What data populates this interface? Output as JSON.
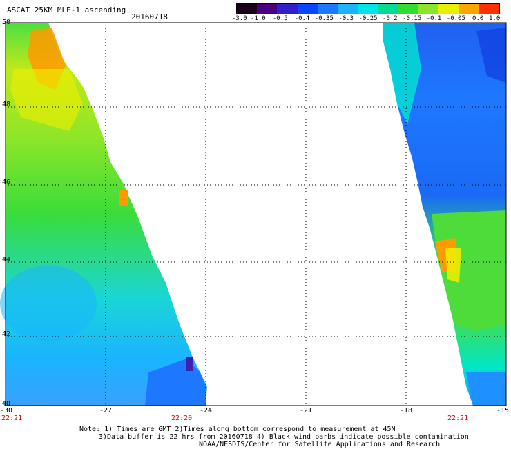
{
  "header": {
    "title": "ASCAT 25KM MLE-1 ascending",
    "date": "20160718"
  },
  "colorbar": {
    "labels": [
      "-3.0",
      "-1.0",
      "-0.5",
      "-0.4",
      "-0.35",
      "-0.3",
      "-0.25",
      "-0.2",
      "-0.15",
      "-0.1",
      "-0.05",
      "0.0",
      "1.0"
    ],
    "colors": [
      "#1a001a",
      "#4b0082",
      "#3020c8",
      "#0a46ff",
      "#1e78ff",
      "#1ab4ff",
      "#00e6e6",
      "#00dc96",
      "#32dc32",
      "#8ce628",
      "#e6f000",
      "#ffa500",
      "#ff3000"
    ]
  },
  "map": {
    "lon_ticks": [
      "-30",
      "-27",
      "-24",
      "-21",
      "-18",
      "-15"
    ],
    "lat_ticks": [
      "50",
      "48",
      "46",
      "44",
      "42",
      "40"
    ],
    "times": [
      "22:21",
      "22:20",
      "22:21"
    ]
  },
  "footer": {
    "note1": "Note: 1) Times are GMT 2)Times along bottom correspond to measurement at 45N",
    "note2": "3)Data buffer is 22 hrs from 20160718 4) Black wind barbs indicate possible contamination",
    "credit": "NOAA/NESDIS/Center for Satellite Applications and Research"
  }
}
